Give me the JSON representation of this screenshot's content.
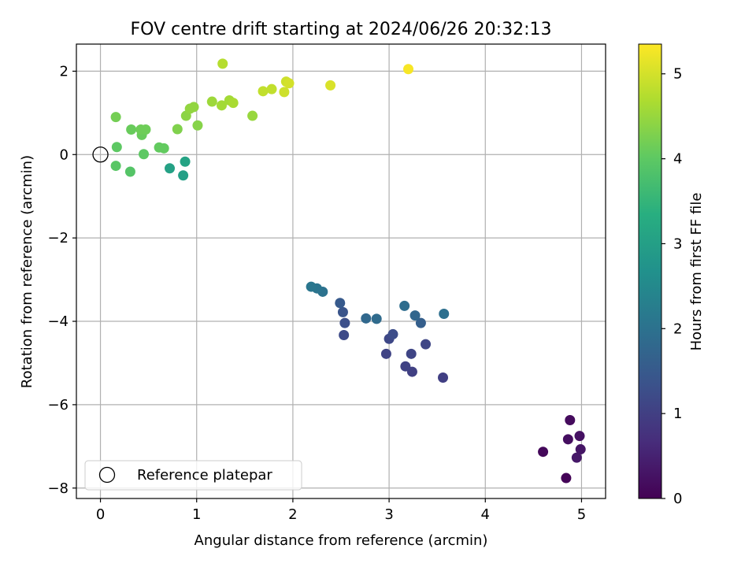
{
  "chart_data": {
    "type": "scatter",
    "title": "FOV centre drift starting at 2024/06/26 20:32:13",
    "xlabel": "Angular distance from reference (arcmin)",
    "ylabel": "Rotation from reference (arcmin)",
    "xlim": [
      -0.25,
      5.25
    ],
    "ylim": [
      -8.25,
      2.65
    ],
    "xticks": [
      0,
      1,
      2,
      3,
      4,
      5
    ],
    "xtick_labels": [
      "0",
      "1",
      "2",
      "3",
      "4",
      "5"
    ],
    "yticks": [
      2,
      0,
      -2,
      -4,
      -6,
      -8
    ],
    "ytick_labels": [
      "2",
      "0",
      "−2",
      "−4",
      "−6",
      "−8"
    ],
    "grid": true,
    "colormap": "viridis",
    "colorbar": {
      "label": "Hours from first FF file",
      "range": [
        0,
        5.35
      ],
      "ticks": [
        0,
        1,
        2,
        3,
        4,
        5
      ],
      "tick_labels": [
        "0",
        "1",
        "2",
        "3",
        "4",
        "5"
      ]
    },
    "reference_point": {
      "x": 0,
      "y": 0
    },
    "legend": {
      "placement": "lower-left",
      "entries": [
        "Reference platepar"
      ]
    },
    "points": [
      {
        "x": 4.84,
        "y": -7.76,
        "c": 0.05
      },
      {
        "x": 4.6,
        "y": -7.13,
        "c": 0.1
      },
      {
        "x": 4.88,
        "y": -6.37,
        "c": 0.15
      },
      {
        "x": 4.86,
        "y": -6.83,
        "c": 0.2
      },
      {
        "x": 4.98,
        "y": -6.75,
        "c": 0.25
      },
      {
        "x": 4.99,
        "y": -7.07,
        "c": 0.3
      },
      {
        "x": 4.95,
        "y": -7.27,
        "c": 0.35
      },
      {
        "x": 3.56,
        "y": -5.35,
        "c": 1.0
      },
      {
        "x": 3.24,
        "y": -5.21,
        "c": 1.02
      },
      {
        "x": 3.17,
        "y": -5.08,
        "c": 1.05
      },
      {
        "x": 2.97,
        "y": -4.78,
        "c": 1.08
      },
      {
        "x": 3.23,
        "y": -4.78,
        "c": 1.1
      },
      {
        "x": 3.38,
        "y": -4.55,
        "c": 1.12
      },
      {
        "x": 3.0,
        "y": -4.42,
        "c": 1.15
      },
      {
        "x": 2.53,
        "y": -4.33,
        "c": 1.2
      },
      {
        "x": 3.04,
        "y": -4.31,
        "c": 1.25
      },
      {
        "x": 2.54,
        "y": -4.04,
        "c": 1.3
      },
      {
        "x": 2.52,
        "y": -3.78,
        "c": 1.4
      },
      {
        "x": 2.49,
        "y": -3.56,
        "c": 1.5
      },
      {
        "x": 3.33,
        "y": -4.04,
        "c": 1.6
      },
      {
        "x": 3.27,
        "y": -3.86,
        "c": 1.75
      },
      {
        "x": 2.76,
        "y": -3.93,
        "c": 1.8
      },
      {
        "x": 2.87,
        "y": -3.94,
        "c": 1.85
      },
      {
        "x": 3.16,
        "y": -3.63,
        "c": 1.9
      },
      {
        "x": 3.57,
        "y": -3.82,
        "c": 1.95
      },
      {
        "x": 2.31,
        "y": -3.29,
        "c": 2.0
      },
      {
        "x": 2.25,
        "y": -3.21,
        "c": 2.05
      },
      {
        "x": 2.19,
        "y": -3.17,
        "c": 2.1
      },
      {
        "x": 0.86,
        "y": -0.5,
        "c": 3.0
      },
      {
        "x": 0.72,
        "y": -0.33,
        "c": 3.05
      },
      {
        "x": 0.88,
        "y": -0.17,
        "c": 3.1
      },
      {
        "x": 0.31,
        "y": -0.41,
        "c": 3.9
      },
      {
        "x": 0.16,
        "y": -0.27,
        "c": 3.95
      },
      {
        "x": 0.45,
        "y": 0.01,
        "c": 4.0
      },
      {
        "x": 0.17,
        "y": 0.18,
        "c": 4.0
      },
      {
        "x": 0.61,
        "y": 0.17,
        "c": 4.05
      },
      {
        "x": 0.66,
        "y": 0.15,
        "c": 4.05
      },
      {
        "x": 0.43,
        "y": 0.47,
        "c": 4.1
      },
      {
        "x": 0.32,
        "y": 0.6,
        "c": 4.1
      },
      {
        "x": 0.42,
        "y": 0.6,
        "c": 4.15
      },
      {
        "x": 0.47,
        "y": 0.6,
        "c": 4.15
      },
      {
        "x": 0.16,
        "y": 0.9,
        "c": 4.2
      },
      {
        "x": 0.8,
        "y": 0.61,
        "c": 4.3
      },
      {
        "x": 1.01,
        "y": 0.7,
        "c": 4.35
      },
      {
        "x": 0.89,
        "y": 0.93,
        "c": 4.4
      },
      {
        "x": 0.93,
        "y": 1.1,
        "c": 4.45
      },
      {
        "x": 0.97,
        "y": 1.14,
        "c": 4.45
      },
      {
        "x": 1.58,
        "y": 0.93,
        "c": 4.5
      },
      {
        "x": 1.16,
        "y": 1.27,
        "c": 4.55
      },
      {
        "x": 1.26,
        "y": 1.18,
        "c": 4.6
      },
      {
        "x": 1.34,
        "y": 1.3,
        "c": 4.6
      },
      {
        "x": 1.38,
        "y": 1.24,
        "c": 4.65
      },
      {
        "x": 1.27,
        "y": 2.18,
        "c": 4.75
      },
      {
        "x": 1.69,
        "y": 1.52,
        "c": 4.85
      },
      {
        "x": 1.78,
        "y": 1.57,
        "c": 4.85
      },
      {
        "x": 1.91,
        "y": 1.5,
        "c": 4.95
      },
      {
        "x": 1.93,
        "y": 1.75,
        "c": 4.95
      },
      {
        "x": 1.96,
        "y": 1.71,
        "c": 5.0
      },
      {
        "x": 2.39,
        "y": 1.66,
        "c": 5.05
      },
      {
        "x": 3.2,
        "y": 2.05,
        "c": 5.3
      }
    ]
  }
}
